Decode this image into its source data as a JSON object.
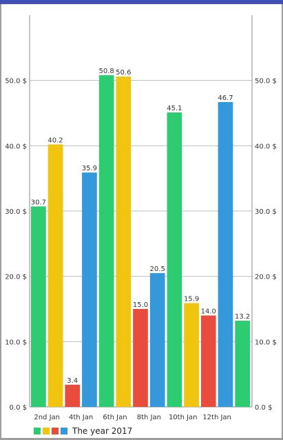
{
  "colors": {
    "green": "#2ecc71",
    "yellow": "#f1c40f",
    "red": "#e74c3c",
    "blue": "#3498db"
  },
  "chart_data": {
    "type": "bar",
    "title": "",
    "xlabel": "",
    "ylabel": "",
    "ylim": [
      0,
      60
    ],
    "y_ticks": [
      0,
      10,
      20,
      30,
      40,
      50
    ],
    "y_tick_labels": [
      "0.0 $",
      "10.0 $",
      "20.0 $",
      "30.0 $",
      "40.0 $",
      "50.0 $"
    ],
    "y_axis_sides": [
      "left",
      "right"
    ],
    "x_tick_labels": [
      "2nd Jan",
      "4th Jan",
      "6th Jan",
      "8th Jan",
      "10th Jan",
      "12th Jan"
    ],
    "grid": "horizontal",
    "legend_position": "bottom-left",
    "series": [
      {
        "name": "The year 2017",
        "color_cycle": [
          "green",
          "yellow",
          "red",
          "blue"
        ],
        "values": [
          30.7,
          40.2,
          3.4,
          35.9,
          50.8,
          50.6,
          15.0,
          20.5,
          45.1,
          15.9,
          14.0,
          46.7,
          13.2
        ],
        "value_labels": [
          "30.7",
          "40.2",
          "3.4",
          "35.9",
          "50.8",
          "50.6",
          "15.0",
          "20.5",
          "45.1",
          "15.9",
          "14.0",
          "46.7",
          "13.2"
        ]
      }
    ]
  }
}
